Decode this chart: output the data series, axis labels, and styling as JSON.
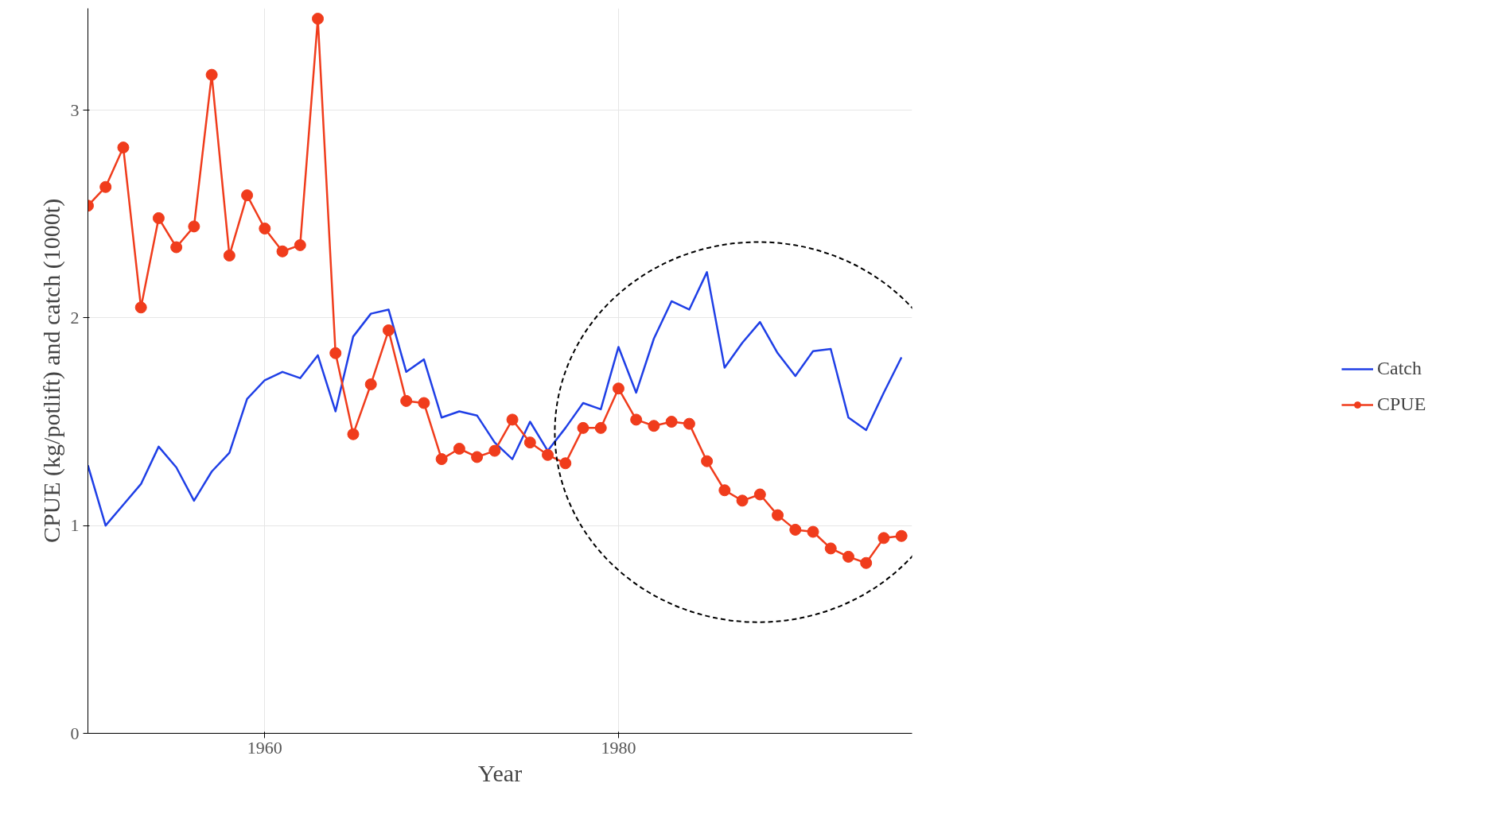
{
  "chart_data": {
    "type": "line",
    "xlabel": "Year",
    "ylabel": "CPUE (kg/potlift) and catch (1000t)",
    "x": [
      1950,
      1951,
      1952,
      1953,
      1954,
      1955,
      1956,
      1957,
      1958,
      1959,
      1960,
      1961,
      1962,
      1963,
      1964,
      1965,
      1966,
      1967,
      1968,
      1969,
      1970,
      1971,
      1972,
      1973,
      1974,
      1975,
      1976,
      1977,
      1978,
      1979,
      1980,
      1981,
      1982,
      1983,
      1984,
      1985,
      1986,
      1987,
      1988,
      1989,
      1990,
      1991,
      1992,
      1993,
      1994,
      1995,
      1996
    ],
    "series": [
      {
        "name": "Catch",
        "color": "#1f3fe6",
        "marker": "none",
        "values": [
          1.29,
          1.0,
          1.1,
          1.2,
          1.38,
          1.28,
          1.12,
          1.26,
          1.35,
          1.61,
          1.7,
          1.74,
          1.71,
          1.82,
          1.55,
          1.91,
          2.02,
          2.04,
          1.74,
          1.8,
          1.52,
          1.55,
          1.53,
          1.4,
          1.32,
          1.5,
          1.36,
          1.47,
          1.59,
          1.56,
          1.86,
          1.64,
          1.9,
          2.08,
          2.04,
          2.22,
          1.76,
          1.88,
          1.98,
          1.83,
          1.72,
          1.84,
          1.85,
          1.52,
          1.46,
          1.64,
          1.81
        ]
      },
      {
        "name": "CPUE",
        "color": "#f03c1c",
        "marker": "circle",
        "values": [
          2.54,
          2.63,
          2.82,
          2.05,
          2.48,
          2.34,
          2.44,
          3.17,
          2.3,
          2.59,
          2.43,
          2.32,
          2.35,
          3.44,
          1.83,
          1.44,
          1.68,
          1.94,
          1.6,
          1.59,
          1.32,
          1.37,
          1.33,
          1.36,
          1.51,
          1.4,
          1.34,
          1.3,
          1.47,
          1.47,
          1.66,
          1.51,
          1.48,
          1.5,
          1.49,
          1.31,
          1.17,
          1.12,
          1.15,
          1.05,
          0.98,
          0.97,
          0.89,
          0.85,
          0.82,
          0.94,
          0.95
        ]
      }
    ],
    "xlim": [
      1950,
      1996.6
    ],
    "ylim": [
      0,
      3.49
    ],
    "xticks": [
      1960,
      1980
    ],
    "yticks": [
      0,
      1,
      2,
      3
    ],
    "grid": true,
    "legend": "right",
    "line_style": "solid"
  }
}
